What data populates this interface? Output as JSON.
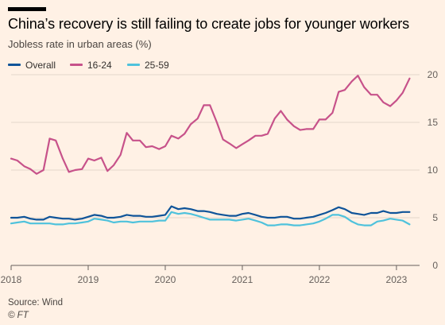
{
  "header": {
    "title": "China’s recovery is still failing to create jobs for younger workers",
    "subtitle": "Jobless rate in urban areas (%)"
  },
  "footer": {
    "source": "Source: Wind",
    "credit": "© FT"
  },
  "chart_data": {
    "type": "line",
    "ylim": [
      0,
      20
    ],
    "yticks": [
      0,
      5,
      10,
      15,
      20
    ],
    "ytick_labels": [
      "0",
      "5",
      "10",
      "15",
      "20"
    ],
    "xlim": [
      2018,
      2023.3
    ],
    "xticks": [
      2018,
      2019,
      2020,
      2021,
      2022,
      2023
    ],
    "xtick_labels": [
      "2018",
      "2019",
      "2020",
      "2021",
      "2022",
      "2023"
    ],
    "grid": true,
    "legend_position": "top-left",
    "x": [
      2018.0,
      2018.08,
      2018.17,
      2018.25,
      2018.33,
      2018.42,
      2018.5,
      2018.58,
      2018.67,
      2018.75,
      2018.83,
      2018.92,
      2019.0,
      2019.08,
      2019.17,
      2019.25,
      2019.33,
      2019.42,
      2019.5,
      2019.58,
      2019.67,
      2019.75,
      2019.83,
      2019.92,
      2020.0,
      2020.08,
      2020.17,
      2020.25,
      2020.33,
      2020.42,
      2020.5,
      2020.58,
      2020.67,
      2020.75,
      2020.83,
      2020.92,
      2021.0,
      2021.08,
      2021.17,
      2021.25,
      2021.33,
      2021.42,
      2021.5,
      2021.58,
      2021.67,
      2021.75,
      2021.83,
      2021.92,
      2022.0,
      2022.08,
      2022.17,
      2022.25,
      2022.33,
      2022.42,
      2022.5,
      2022.58,
      2022.67,
      2022.75,
      2022.83,
      2022.92,
      2023.0,
      2023.08,
      2023.17
    ],
    "series": [
      {
        "name": "Overall",
        "color": "#0f5499",
        "values": [
          5.0,
          5.0,
          5.1,
          4.9,
          4.8,
          4.8,
          5.1,
          5.0,
          4.9,
          4.9,
          4.8,
          4.9,
          5.1,
          5.3,
          5.2,
          5.0,
          5.0,
          5.1,
          5.3,
          5.2,
          5.2,
          5.1,
          5.1,
          5.2,
          5.3,
          6.2,
          5.9,
          6.0,
          5.9,
          5.7,
          5.7,
          5.6,
          5.4,
          5.3,
          5.2,
          5.2,
          5.4,
          5.5,
          5.3,
          5.1,
          5.0,
          5.0,
          5.1,
          5.1,
          4.9,
          4.9,
          5.0,
          5.1,
          5.3,
          5.5,
          5.8,
          6.1,
          5.9,
          5.5,
          5.4,
          5.3,
          5.5,
          5.5,
          5.7,
          5.5,
          5.5,
          5.6,
          5.6
        ]
      },
      {
        "name": "16-24",
        "color": "#c7528a",
        "values": [
          11.2,
          11.0,
          10.4,
          10.1,
          9.6,
          10.0,
          13.3,
          13.1,
          11.2,
          9.8,
          10.0,
          10.1,
          11.2,
          11.0,
          11.3,
          9.9,
          10.5,
          11.6,
          13.9,
          13.1,
          13.1,
          12.4,
          12.5,
          12.2,
          12.5,
          13.6,
          13.3,
          13.8,
          14.8,
          15.4,
          16.8,
          16.8,
          15.0,
          13.2,
          12.8,
          12.3,
          12.7,
          13.1,
          13.6,
          13.6,
          13.8,
          15.4,
          16.2,
          15.3,
          14.6,
          14.2,
          14.3,
          14.3,
          15.3,
          15.3,
          16.0,
          18.2,
          18.4,
          19.3,
          19.9,
          18.7,
          17.9,
          17.9,
          17.1,
          16.7,
          17.3,
          18.1,
          19.6
        ]
      },
      {
        "name": "25-59",
        "color": "#4fc2dc",
        "values": [
          4.4,
          4.5,
          4.6,
          4.4,
          4.4,
          4.4,
          4.4,
          4.3,
          4.3,
          4.4,
          4.4,
          4.5,
          4.6,
          4.9,
          4.8,
          4.7,
          4.5,
          4.6,
          4.6,
          4.5,
          4.6,
          4.6,
          4.6,
          4.7,
          4.7,
          5.6,
          5.4,
          5.5,
          5.4,
          5.2,
          5.0,
          4.8,
          4.8,
          4.8,
          4.8,
          4.7,
          4.8,
          4.9,
          4.7,
          4.5,
          4.2,
          4.2,
          4.3,
          4.3,
          4.2,
          4.2,
          4.3,
          4.4,
          4.6,
          4.9,
          5.3,
          5.3,
          5.1,
          4.6,
          4.3,
          4.2,
          4.2,
          4.6,
          4.7,
          4.9,
          4.8,
          4.7,
          4.3
        ]
      }
    ]
  }
}
